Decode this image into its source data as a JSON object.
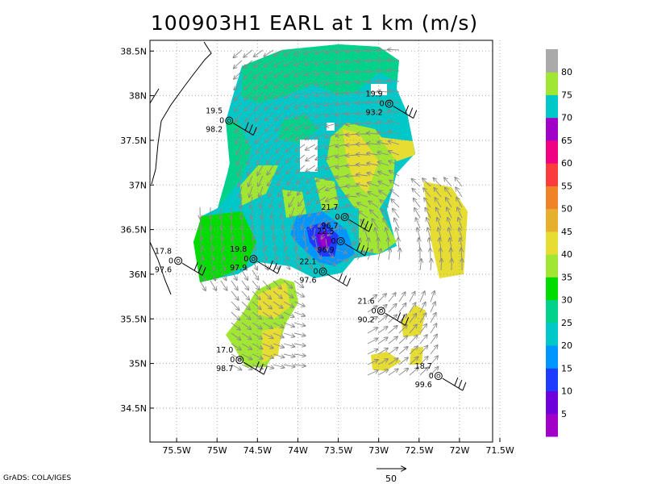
{
  "title": "100903H1 EARL at 1 km (m/s)",
  "credit": "GrADS: COLA/IGES",
  "map": {
    "lon_labels": [
      "75.5W",
      "75W",
      "74.5W",
      "74W",
      "73.5W",
      "73W",
      "72.5W",
      "72W",
      "71.5W"
    ],
    "lat_labels": [
      "38.5N",
      "38N",
      "37.5N",
      "37N",
      "36.5N",
      "36N",
      "35.5N",
      "35N",
      "34.5N"
    ],
    "lon_range": [
      -75.83,
      -71.59
    ],
    "lat_range": [
      34.12,
      38.62
    ]
  },
  "colorbar": {
    "labels": [
      "5",
      "10",
      "15",
      "20",
      "25",
      "30",
      "35",
      "40",
      "45",
      "50",
      "55",
      "60",
      "65",
      "70",
      "75",
      "80"
    ],
    "colors": [
      "#a000c8",
      "#6e00dc",
      "#1e3cff",
      "#0096ff",
      "#00c8c8",
      "#00d28c",
      "#00dc00",
      "#a0e632",
      "#e6dc32",
      "#e6af2d",
      "#f08228",
      "#fa3c3c",
      "#f00082",
      "#a000c8",
      "#00c8c8",
      "#a0e632",
      "#aaaaaa"
    ]
  },
  "stations": [
    {
      "lon": -74.85,
      "lat": 37.72,
      "wind": "19.5",
      "dir": "0",
      "pressure": "98.2"
    },
    {
      "lon": -72.87,
      "lat": 37.91,
      "wind": "19.9",
      "dir": "0",
      "pressure": "93.2"
    },
    {
      "lon": -73.42,
      "lat": 36.64,
      "wind": "21.7",
      "dir": "0",
      "pressure": "96.7"
    },
    {
      "lon": -73.47,
      "lat": 36.37,
      "wind": "22.5",
      "dir": "0",
      "pressure": "96.9"
    },
    {
      "lon": -73.69,
      "lat": 36.03,
      "wind": "22.1",
      "dir": "0",
      "pressure": "97.6"
    },
    {
      "lon": -74.55,
      "lat": 36.17,
      "wind": "19.8",
      "dir": "0",
      "pressure": "97.9"
    },
    {
      "lon": -75.48,
      "lat": 36.15,
      "wind": "17.8",
      "dir": "0",
      "pressure": "97.6"
    },
    {
      "lon": -72.97,
      "lat": 35.59,
      "wind": "21.6",
      "dir": "0",
      "pressure": "90.2"
    },
    {
      "lon": -74.72,
      "lat": 35.04,
      "wind": "17.0",
      "dir": "0",
      "pressure": "98.7"
    },
    {
      "lon": -72.26,
      "lat": 34.86,
      "wind": "18.7",
      "dir": "0",
      "pressure": "99.6"
    }
  ],
  "scale_label": "50"
}
